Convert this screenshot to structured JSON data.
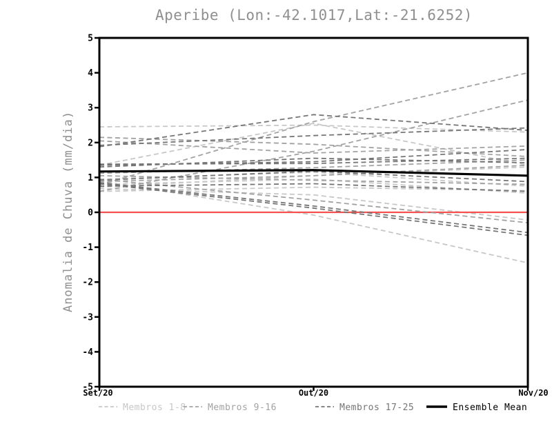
{
  "chart_data": {
    "type": "line",
    "title": "Aperibe (Lon:-42.1017,Lat:-21.6252)",
    "ylabel": "Anomalia de Chuva (mm/dia)",
    "x_categories": [
      "Set/20",
      "Out/20",
      "Nov/20"
    ],
    "ylim": [
      -5,
      5
    ],
    "ytick_labels": [
      "5",
      "4",
      "3",
      "2",
      "1",
      "0",
      "-1",
      "-2",
      "-3",
      "-4",
      "-5"
    ],
    "axis_color": "#000000",
    "background_color": "#ffffff",
    "zero_line": {
      "value": 0,
      "color": "#f4504f"
    },
    "mean": {
      "name": "Ensemble Mean",
      "color": "#000000",
      "values": [
        1.17,
        1.21,
        1.05
      ]
    },
    "groups": [
      {
        "label": "Membros 1-8",
        "color": "#c7c7c7"
      },
      {
        "label": "Membros 9-16",
        "color": "#a2a2a2"
      },
      {
        "label": "Membros 17-25",
        "color": "#757575"
      }
    ],
    "members": [
      {
        "name": "member-1",
        "group": 0,
        "values": [
          2.45,
          2.5,
          2.3
        ]
      },
      {
        "name": "member-2",
        "group": 0,
        "values": [
          1.35,
          2.55,
          1.35
        ]
      },
      {
        "name": "member-3",
        "group": 0,
        "values": [
          0.72,
          1.05,
          1.3
        ]
      },
      {
        "name": "member-4",
        "group": 0,
        "values": [
          0.9,
          -0.08,
          -1.45
        ]
      },
      {
        "name": "member-5",
        "group": 0,
        "values": [
          0.8,
          0.95,
          0.55
        ]
      },
      {
        "name": "member-6",
        "group": 0,
        "values": [
          0.68,
          0.5,
          -0.22
        ]
      },
      {
        "name": "member-7",
        "group": 0,
        "values": [
          0.95,
          1.15,
          0.75
        ]
      },
      {
        "name": "member-8",
        "group": 0,
        "values": [
          0.6,
          0.72,
          0.62
        ]
      },
      {
        "name": "member-9",
        "group": 1,
        "values": [
          2.15,
          1.95,
          1.6
        ]
      },
      {
        "name": "member-10",
        "group": 1,
        "values": [
          2.05,
          1.7,
          1.9
        ]
      },
      {
        "name": "member-11",
        "group": 1,
        "values": [
          0.78,
          2.6,
          4.0
        ]
      },
      {
        "name": "member-12",
        "group": 1,
        "values": [
          0.6,
          1.75,
          3.22
        ]
      },
      {
        "name": "member-13",
        "group": 1,
        "values": [
          1.05,
          0.92,
          0.8
        ]
      },
      {
        "name": "member-14",
        "group": 1,
        "values": [
          0.88,
          1.05,
          1.35
        ]
      },
      {
        "name": "member-15",
        "group": 1,
        "values": [
          0.95,
          0.35,
          -0.3
        ]
      },
      {
        "name": "member-16",
        "group": 1,
        "values": [
          1.12,
          1.28,
          1.5
        ]
      },
      {
        "name": "member-17",
        "group": 2,
        "values": [
          1.88,
          2.8,
          2.35
        ]
      },
      {
        "name": "member-18",
        "group": 2,
        "values": [
          1.92,
          2.2,
          2.42
        ]
      },
      {
        "name": "member-19",
        "group": 2,
        "values": [
          0.85,
          0.18,
          -0.58
        ]
      },
      {
        "name": "member-20",
        "group": 2,
        "values": [
          0.82,
          0.12,
          -0.66
        ]
      },
      {
        "name": "member-21",
        "group": 2,
        "values": [
          1.38,
          1.4,
          1.55
        ]
      },
      {
        "name": "member-22",
        "group": 2,
        "values": [
          1.35,
          1.45,
          1.8
        ]
      },
      {
        "name": "member-23",
        "group": 2,
        "values": [
          0.92,
          1.18,
          0.88
        ]
      },
      {
        "name": "member-24",
        "group": 2,
        "values": [
          0.75,
          0.82,
          0.6
        ]
      },
      {
        "name": "member-25",
        "group": 2,
        "values": [
          1.3,
          1.55,
          1.42
        ]
      }
    ],
    "legend": [
      "Membros 1-8",
      "Membros 9-16",
      "Membros 17-25",
      "Ensemble Mean"
    ]
  }
}
